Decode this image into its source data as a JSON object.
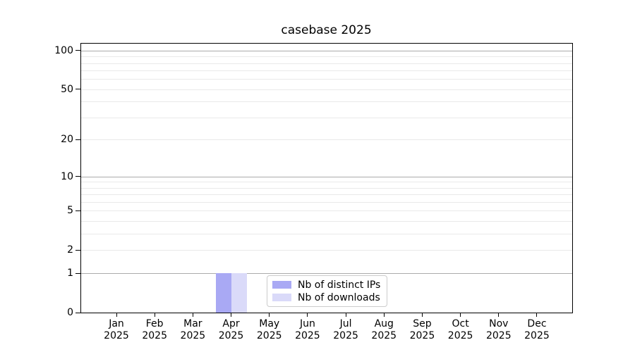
{
  "figure": {
    "background": "#ffffff"
  },
  "chart_data": {
    "type": "bar",
    "title": "casebase 2025",
    "categories": [
      "Jan 2025",
      "Feb 2025",
      "Mar 2025",
      "Apr 2025",
      "May 2025",
      "Jun 2025",
      "Jul 2025",
      "Aug 2025",
      "Sep 2025",
      "Oct 2025",
      "Nov 2025",
      "Dec 2025"
    ],
    "series": [
      {
        "name": "Nb of distinct IPs",
        "color": "#a9a9f4",
        "values": [
          0,
          0,
          0,
          1,
          0,
          0,
          0,
          0,
          0,
          0,
          0,
          0
        ]
      },
      {
        "name": "Nb of downloads",
        "color": "#dadaf9",
        "values": [
          0,
          0,
          0,
          1,
          0,
          0,
          0,
          0,
          0,
          0,
          0,
          0
        ]
      }
    ],
    "xlabel": "",
    "ylabel": "",
    "yscale": "log1p",
    "ylim": [
      0,
      113
    ],
    "yticks": [
      0,
      1,
      2,
      5,
      10,
      20,
      50,
      100
    ],
    "grid_major": [
      1,
      10,
      100
    ],
    "grid_minor": [
      2,
      3,
      4,
      5,
      6,
      7,
      8,
      9,
      20,
      30,
      40,
      50,
      60,
      70,
      80,
      90
    ],
    "grid": "on",
    "legend_position": "lower center",
    "colors": {
      "grid_major": "#ababab",
      "grid_minor": "#e9e9e9",
      "spine": "#000000",
      "text": "#000000",
      "legend_border": "#cccccc"
    }
  }
}
